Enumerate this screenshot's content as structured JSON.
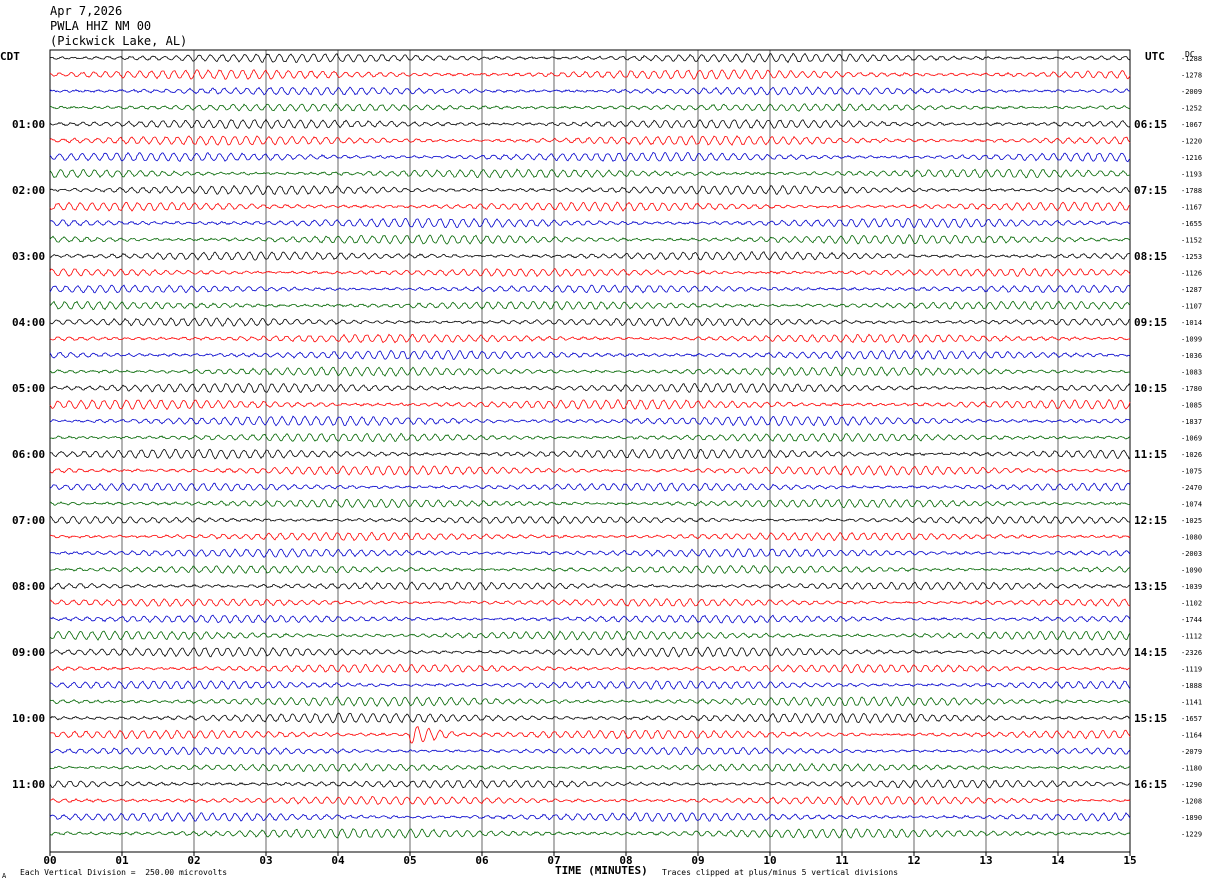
{
  "header": {
    "date": "Apr 7,2026",
    "station": "PWLA HHZ NM 00",
    "location": "(Pickwick Lake, AL)"
  },
  "axes": {
    "left_tz": "CDT",
    "right_tz": "UTC",
    "dc_label": "DC",
    "x_title": "TIME (MINUTES)"
  },
  "footer": {
    "scale_note": "Each Vertical Division =  250.00 microvolts",
    "clip_note": "Traces clipped at plus/minus 5 vertical divisions",
    "corner_mark": "A"
  },
  "colors": {
    "trace_cycle": [
      "#000000",
      "#ff0000",
      "#0000cc",
      "#006600"
    ],
    "grid": "#000000"
  },
  "chart_data": {
    "type": "line",
    "subtype": "helicorder",
    "x": {
      "label": "TIME (MINUTES)",
      "range": [
        0,
        15
      ],
      "ticks": [
        "00",
        "01",
        "02",
        "03",
        "04",
        "05",
        "06",
        "07",
        "08",
        "09",
        "10",
        "11",
        "12",
        "13",
        "14",
        "15"
      ]
    },
    "rows_per_hour": 4,
    "left_hour_labels": [
      "01:00",
      "02:00",
      "03:00",
      "04:00",
      "05:00",
      "06:00",
      "07:00",
      "08:00",
      "09:00",
      "10:00",
      "11:00"
    ],
    "right_hour_labels": [
      "06:15",
      "07:15",
      "08:15",
      "09:15",
      "10:15",
      "11:15",
      "12:15",
      "13:15",
      "14:15",
      "15:15",
      "16:15"
    ],
    "dc_offsets": [
      "-1288",
      "-1278",
      "-2009",
      "-1252",
      "-1067",
      "-1220",
      "-1216",
      "-1193",
      "-1788",
      "-1167",
      "-1655",
      "-1152",
      "-1253",
      "-1126",
      "-1287",
      "-1107",
      "-1014",
      "-1099",
      "-1036",
      "-1083",
      "-1780",
      "-1085",
      "-1837",
      "-1069",
      "-1026",
      "-1075",
      "-2470",
      "-1074",
      "-1025",
      "-1080",
      "-2003",
      "-1090",
      "-1039",
      "-1102",
      "-1744",
      "-1112",
      "-2326",
      "-1119",
      "-1888",
      "-1141",
      "-1657",
      "-1164",
      "-2079",
      "-1180",
      "-1290",
      "-1208",
      "-1890",
      "-1229"
    ],
    "row_count": 48,
    "notable_event": {
      "row": 41,
      "minute_start": 5.0,
      "minute_end": 5.6,
      "description_color": "red"
    }
  }
}
